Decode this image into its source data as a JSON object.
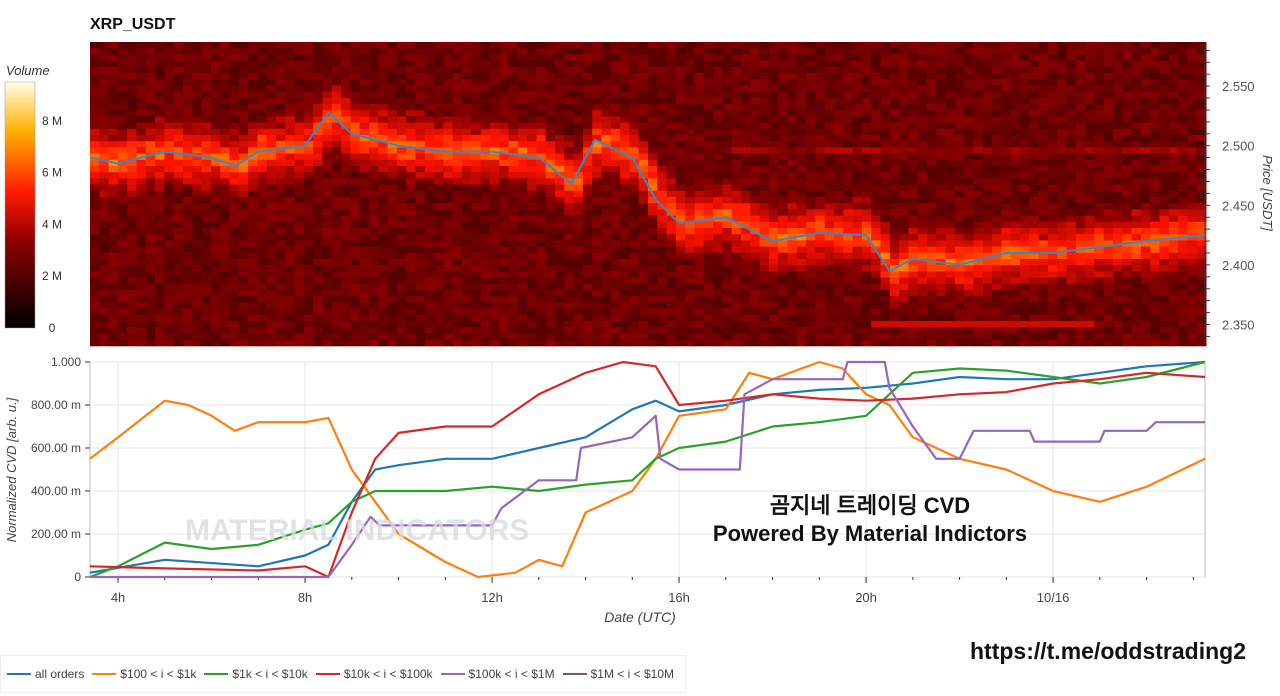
{
  "chart_data": [
    {
      "type": "heatmap",
      "title": "XRP_USDT",
      "ylabel": "Price [USDT]",
      "ylim": [
        2.337,
        2.587
      ],
      "yticks": [
        "2.550",
        "2.500",
        "2.450",
        "2.400",
        "2.350"
      ],
      "ytick_values": [
        2.55,
        2.5,
        2.45,
        2.4,
        2.35
      ],
      "colorbar": {
        "title": "Volume",
        "ticks": [
          "8 M",
          "6 M",
          "4 M",
          "2 M",
          "0"
        ],
        "tick_values": [
          8,
          6,
          4,
          2,
          0
        ],
        "range": [
          0,
          9.5
        ]
      },
      "price_series": {
        "color": "#3a86c8",
        "x": [
          3.4,
          4,
          5,
          6,
          6.5,
          7,
          8,
          8.5,
          9,
          10,
          11,
          12,
          13,
          13.7,
          14.2,
          15,
          15.5,
          16,
          17,
          18,
          19,
          20,
          20.5,
          21,
          22,
          23,
          24,
          25,
          26,
          27.25
        ],
        "y": [
          2.49,
          2.485,
          2.495,
          2.49,
          2.483,
          2.495,
          2.5,
          2.528,
          2.51,
          2.5,
          2.495,
          2.495,
          2.49,
          2.468,
          2.505,
          2.49,
          2.455,
          2.435,
          2.44,
          2.42,
          2.427,
          2.425,
          2.395,
          2.405,
          2.4,
          2.41,
          2.41,
          2.415,
          2.42,
          2.425
        ]
      }
    },
    {
      "type": "line",
      "xlabel": "Date (UTC)",
      "ylabel": "Normalized CVD [arb. u.]",
      "xlim": [
        3.4,
        27.25
      ],
      "ylim": [
        0,
        1
      ],
      "xticks": [
        "4h",
        "8h",
        "12h",
        "16h",
        "20h",
        "10/16"
      ],
      "xtick_values": [
        4,
        8,
        12,
        16,
        20,
        24
      ],
      "yticks": [
        "1.000",
        "800.00 m",
        "600.00 m",
        "400.00 m",
        "200.00 m",
        "0"
      ],
      "ytick_values": [
        1,
        0.8,
        0.6,
        0.4,
        0.2,
        0
      ],
      "legend_position": "bottom",
      "series": [
        {
          "name": "all orders",
          "color": "#1f77b4",
          "x": [
            3.4,
            5,
            7,
            8,
            8.5,
            9,
            9.5,
            10,
            11,
            12,
            13,
            14,
            15,
            15.5,
            16,
            17,
            18,
            19,
            20,
            21,
            22,
            23,
            24,
            25,
            26,
            27.25
          ],
          "y": [
            0.02,
            0.08,
            0.05,
            0.1,
            0.15,
            0.35,
            0.5,
            0.52,
            0.55,
            0.55,
            0.6,
            0.65,
            0.78,
            0.82,
            0.77,
            0.8,
            0.85,
            0.87,
            0.88,
            0.9,
            0.93,
            0.92,
            0.92,
            0.95,
            0.98,
            1.0
          ]
        },
        {
          "name": "$100 < i < $1k",
          "color": "#ff7f0e",
          "x": [
            3.4,
            4,
            5,
            5.5,
            6,
            6.5,
            7,
            8,
            8.5,
            9,
            9.5,
            10,
            11,
            11.7,
            12.5,
            13,
            13.5,
            14,
            15,
            15.5,
            16,
            17,
            17.5,
            18,
            19,
            19.5,
            20,
            20.5,
            21,
            22,
            23,
            24,
            25,
            26,
            27.25
          ],
          "y": [
            0.55,
            0.65,
            0.82,
            0.8,
            0.75,
            0.68,
            0.72,
            0.72,
            0.74,
            0.5,
            0.35,
            0.2,
            0.07,
            0.0,
            0.02,
            0.08,
            0.05,
            0.3,
            0.4,
            0.55,
            0.75,
            0.78,
            0.95,
            0.92,
            1.0,
            0.97,
            0.85,
            0.8,
            0.65,
            0.55,
            0.5,
            0.4,
            0.35,
            0.42,
            0.55
          ]
        },
        {
          "name": "$1k < i < $10k",
          "color": "#2ca02c",
          "x": [
            3.4,
            4,
            5,
            6,
            7,
            8,
            8.5,
            9,
            9.5,
            10,
            11,
            12,
            13,
            14,
            15,
            15.5,
            16,
            17,
            18,
            19,
            20,
            20.5,
            21,
            22,
            23,
            24,
            25,
            26,
            27.25
          ],
          "y": [
            0.0,
            0.05,
            0.16,
            0.13,
            0.15,
            0.22,
            0.25,
            0.35,
            0.4,
            0.4,
            0.4,
            0.42,
            0.4,
            0.43,
            0.45,
            0.55,
            0.6,
            0.63,
            0.7,
            0.72,
            0.75,
            0.85,
            0.95,
            0.97,
            0.96,
            0.93,
            0.9,
            0.93,
            1.0
          ]
        },
        {
          "name": "$10k < i < $100k",
          "color": "#d62728",
          "x": [
            3.4,
            5,
            7,
            8,
            8.5,
            9,
            9.5,
            10,
            11,
            12,
            13,
            14,
            14.8,
            15.5,
            16,
            17,
            18,
            19,
            20,
            21,
            22,
            23,
            24,
            25,
            26,
            27.25
          ],
          "y": [
            0.05,
            0.04,
            0.03,
            0.05,
            0.0,
            0.3,
            0.55,
            0.67,
            0.7,
            0.7,
            0.85,
            0.95,
            1.0,
            0.98,
            0.8,
            0.82,
            0.85,
            0.83,
            0.82,
            0.83,
            0.85,
            0.86,
            0.9,
            0.92,
            0.95,
            0.93
          ]
        },
        {
          "name": "$100k < i < $1M",
          "color": "#9467bd",
          "x": [
            3.4,
            8.5,
            9,
            9.4,
            9.6,
            12,
            12.2,
            13,
            13.8,
            13.9,
            15,
            15.5,
            15.6,
            16,
            17.3,
            17.4,
            18,
            19.5,
            19.6,
            20.4,
            20.5,
            21,
            21.5,
            22,
            22.3,
            23.5,
            23.6,
            25,
            25.1,
            26,
            26.2,
            27.25
          ],
          "y": [
            0,
            0,
            0.15,
            0.28,
            0.24,
            0.24,
            0.32,
            0.45,
            0.45,
            0.6,
            0.65,
            0.75,
            0.55,
            0.5,
            0.5,
            0.85,
            0.92,
            0.92,
            1.0,
            1.0,
            0.88,
            0.7,
            0.55,
            0.55,
            0.68,
            0.68,
            0.63,
            0.63,
            0.68,
            0.68,
            0.72,
            0.72
          ]
        },
        {
          "name": "$1M < i < $10M",
          "color": "#8c564b",
          "x": [],
          "y": []
        }
      ]
    }
  ],
  "watermark": "MATERIAL INDICATORS",
  "overlay": {
    "line1": "곰지네 트레이딩 CVD",
    "line2": "Powered By Material Indictors"
  },
  "url": "https://t.me/oddstrading2"
}
